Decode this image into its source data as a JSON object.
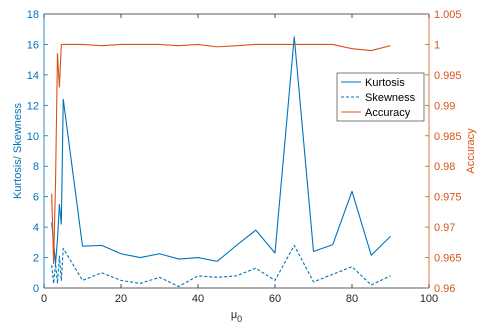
{
  "chart_data": {
    "type": "line",
    "xlabel": "μ",
    "xlabel_subscript": "0",
    "ylabel_left": "Kurtosis/ Skewness",
    "ylabel_right": "Accuracy",
    "xlim": [
      0,
      100
    ],
    "ylim_left": [
      0,
      18
    ],
    "ylim_right": [
      0.96,
      1.005
    ],
    "x_ticks": [
      0,
      20,
      40,
      60,
      80,
      100
    ],
    "y_ticks_left": [
      0,
      2,
      4,
      6,
      8,
      10,
      12,
      14,
      16,
      18
    ],
    "y_ticks_right": [
      0.96,
      0.965,
      0.97,
      0.975,
      0.98,
      0.985,
      0.99,
      0.995,
      1,
      1.005
    ],
    "y_tick_labels_right": [
      "0.96",
      "0.965",
      "0.97",
      "0.975",
      "0.98",
      "0.985",
      "0.99",
      "0.995",
      "1",
      "1.005"
    ],
    "grid": false,
    "legend_position": "right-upper",
    "colors": {
      "left_axis": "#0072BD",
      "right_axis": "#D95319",
      "axes": "#262626"
    },
    "series": [
      {
        "name": "Kurtosis",
        "axis": "left",
        "style": "solid",
        "color": "#0072BD",
        "x": [
          2,
          2.5,
          3,
          3.5,
          4,
          4.5,
          5,
          10,
          15,
          20,
          25,
          30,
          35,
          40,
          45,
          50,
          55,
          60,
          65,
          70,
          75,
          80,
          85,
          90
        ],
        "y": [
          4.3,
          3.0,
          1.6,
          3.2,
          5.5,
          4.2,
          12.4,
          2.75,
          2.8,
          2.25,
          2.0,
          2.25,
          1.9,
          2.0,
          1.75,
          2.8,
          3.8,
          2.3,
          16.5,
          2.4,
          2.85,
          6.35,
          2.15,
          3.4
        ]
      },
      {
        "name": "Skewness",
        "axis": "left",
        "style": "dashed",
        "color": "#0072BD",
        "x": [
          2,
          2.5,
          3,
          3.5,
          4,
          4.5,
          5,
          10,
          15,
          20,
          25,
          30,
          35,
          40,
          45,
          50,
          55,
          60,
          65,
          70,
          75,
          80,
          85,
          90
        ],
        "y": [
          1.5,
          0.3,
          1.6,
          0.3,
          2.1,
          0.5,
          2.6,
          0.5,
          1.0,
          0.5,
          0.3,
          0.7,
          0.1,
          0.8,
          0.7,
          0.8,
          1.3,
          0.5,
          2.8,
          0.4,
          0.9,
          1.4,
          0.2,
          0.8
        ]
      },
      {
        "name": "Accuracy",
        "axis": "right",
        "style": "solid",
        "color": "#D95319",
        "x": [
          2,
          2.5,
          3,
          3.5,
          4,
          4.5,
          5,
          10,
          15,
          20,
          25,
          30,
          35,
          40,
          45,
          50,
          55,
          60,
          65,
          70,
          75,
          80,
          85,
          90
        ],
        "y": [
          0.9755,
          0.964,
          0.9775,
          0.9985,
          0.993,
          1.0,
          1.0,
          1.0,
          0.9998,
          1.0,
          1.0,
          1.0,
          0.9998,
          1.0,
          0.9996,
          0.9998,
          1.0,
          1.0,
          1.0,
          1.0,
          1.0,
          0.9993,
          0.999,
          0.9998
        ]
      }
    ]
  }
}
